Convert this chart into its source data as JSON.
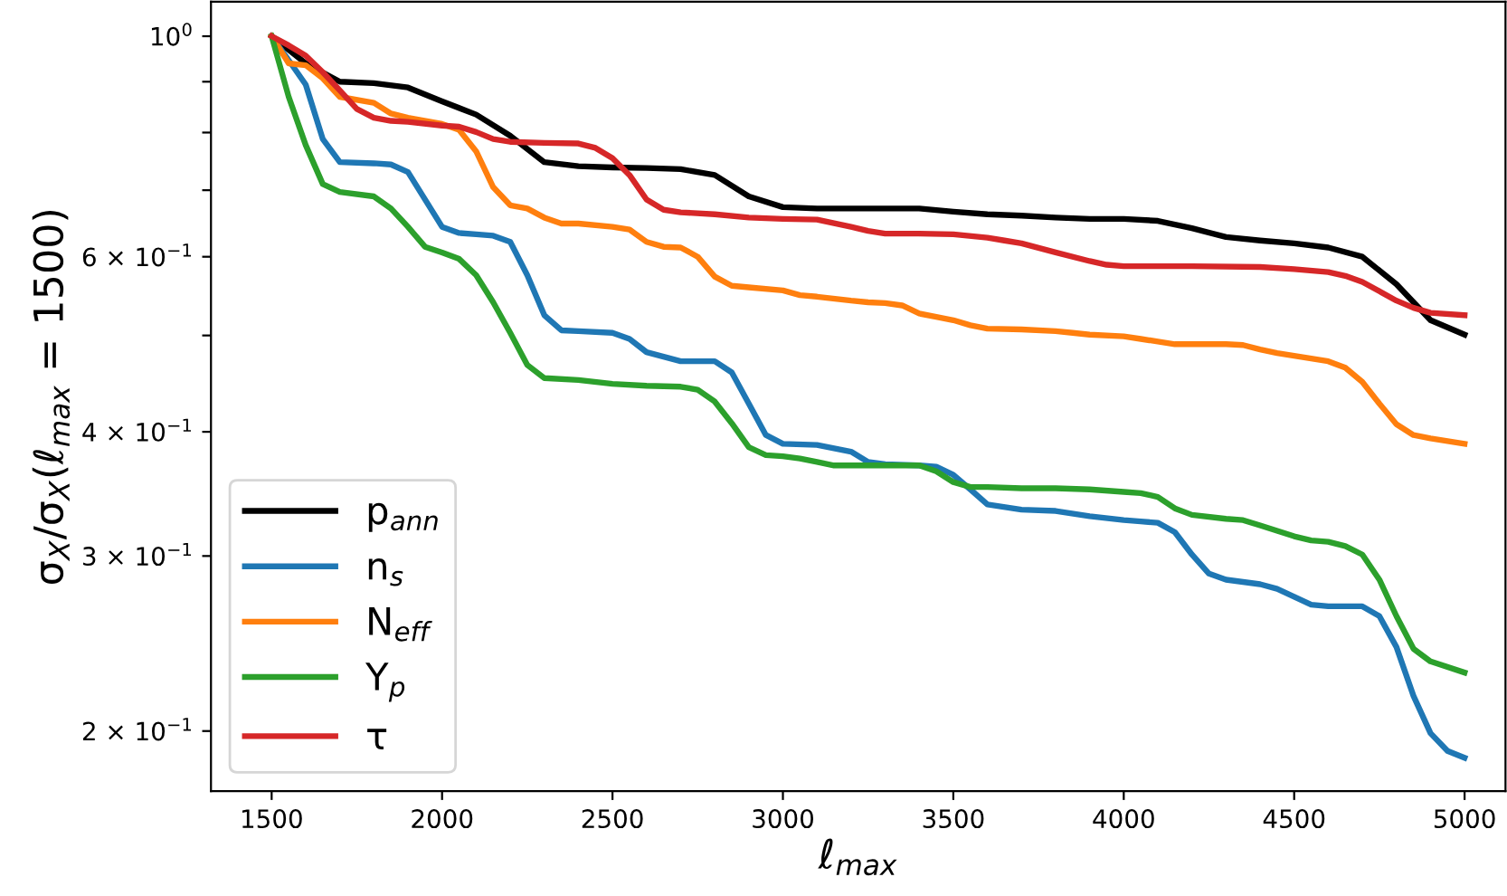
{
  "chart_data": {
    "type": "line",
    "xlabel": "ℓ$_{max}$",
    "ylabel": "σ$_{X}$/σ$_{X}$(ℓ$_{max}$ = 1500)",
    "log": "y",
    "grid": false,
    "legend": "bottom left",
    "line_style": "solid",
    "marker": "none",
    "xlim": [
      1322,
      5120
    ],
    "xticks": [
      1500,
      2000,
      2500,
      3000,
      3500,
      4000,
      4500,
      5000
    ],
    "ylim": [
      0.174,
      1.083
    ],
    "yticks": [
      {
        "value": 1,
        "label": "10$^{0}$"
      },
      {
        "value": 0.9,
        "label": null
      },
      {
        "value": 0.8,
        "label": null
      },
      {
        "value": 0.7,
        "label": null
      },
      {
        "value": 0.6,
        "label": "6 × 10$^{−1}$"
      },
      {
        "value": 0.5,
        "label": null
      },
      {
        "value": 0.4,
        "label": "4 × 10$^{−1}$"
      },
      {
        "value": 0.3,
        "label": "3 × 10$^{−1}$"
      },
      {
        "value": 0.2,
        "label": "2 × 10$^{−1}$"
      }
    ],
    "series": [
      {
        "name": "p$_{ann}$",
        "color": "#000000",
        "x": [
          1500,
          1600,
          1700,
          1800,
          1900,
          2000,
          2100,
          2200,
          2300,
          2400,
          2500,
          2600,
          2700,
          2800,
          2900,
          3000,
          3100,
          3200,
          3300,
          3400,
          3500,
          3600,
          3700,
          3800,
          3900,
          4000,
          4100,
          4200,
          4300,
          4400,
          4500,
          4600,
          4700,
          4800,
          4900,
          5000
        ],
        "values": [
          1.0,
          0.939,
          0.9,
          0.897,
          0.888,
          0.86,
          0.834,
          0.794,
          0.747,
          0.74,
          0.738,
          0.737,
          0.735,
          0.725,
          0.69,
          0.673,
          0.671,
          0.671,
          0.671,
          0.671,
          0.666,
          0.662,
          0.66,
          0.657,
          0.655,
          0.655,
          0.652,
          0.641,
          0.628,
          0.623,
          0.619,
          0.613,
          0.6,
          0.563,
          0.518,
          0.501
        ]
      },
      {
        "name": "n$_{s}$",
        "color": "#1f77b4",
        "x": [
          1500,
          1550,
          1600,
          1650,
          1700,
          1800,
          1850,
          1900,
          2000,
          2050,
          2100,
          2150,
          2200,
          2250,
          2300,
          2350,
          2400,
          2500,
          2550,
          2600,
          2700,
          2800,
          2850,
          2900,
          2950,
          3000,
          3100,
          3200,
          3250,
          3300,
          3400,
          3450,
          3500,
          3550,
          3600,
          3700,
          3800,
          3900,
          4000,
          4050,
          4100,
          4150,
          4200,
          4250,
          4300,
          4400,
          4450,
          4500,
          4550,
          4600,
          4700,
          4750,
          4800,
          4850,
          4900,
          4950,
          5000
        ],
        "values": [
          1.0,
          0.946,
          0.894,
          0.788,
          0.747,
          0.745,
          0.743,
          0.73,
          0.643,
          0.634,
          0.632,
          0.63,
          0.621,
          0.575,
          0.524,
          0.506,
          0.505,
          0.503,
          0.496,
          0.481,
          0.471,
          0.471,
          0.459,
          0.427,
          0.397,
          0.389,
          0.388,
          0.382,
          0.373,
          0.371,
          0.37,
          0.369,
          0.362,
          0.35,
          0.338,
          0.334,
          0.333,
          0.329,
          0.326,
          0.325,
          0.324,
          0.317,
          0.301,
          0.288,
          0.284,
          0.281,
          0.278,
          0.273,
          0.268,
          0.267,
          0.267,
          0.261,
          0.243,
          0.217,
          0.199,
          0.191,
          0.188
        ]
      },
      {
        "name": "N$_{eff}$",
        "color": "#ff7f0e",
        "x": [
          1500,
          1550,
          1600,
          1650,
          1700,
          1800,
          1850,
          1900,
          2000,
          2050,
          2100,
          2150,
          2200,
          2250,
          2300,
          2350,
          2400,
          2500,
          2550,
          2600,
          2650,
          2700,
          2750,
          2800,
          2850,
          2900,
          3000,
          3050,
          3100,
          3200,
          3250,
          3300,
          3350,
          3400,
          3450,
          3500,
          3550,
          3600,
          3700,
          3800,
          3850,
          3900,
          4000,
          4050,
          4100,
          4150,
          4200,
          4300,
          4350,
          4400,
          4450,
          4500,
          4550,
          4600,
          4650,
          4700,
          4750,
          4800,
          4850,
          4900,
          5000
        ],
        "values": [
          1.0,
          0.939,
          0.935,
          0.907,
          0.869,
          0.857,
          0.836,
          0.828,
          0.816,
          0.805,
          0.766,
          0.705,
          0.676,
          0.671,
          0.657,
          0.648,
          0.648,
          0.643,
          0.639,
          0.621,
          0.614,
          0.613,
          0.6,
          0.573,
          0.561,
          0.559,
          0.555,
          0.549,
          0.547,
          0.542,
          0.54,
          0.539,
          0.536,
          0.526,
          0.522,
          0.518,
          0.512,
          0.508,
          0.507,
          0.505,
          0.503,
          0.501,
          0.499,
          0.496,
          0.493,
          0.49,
          0.49,
          0.49,
          0.489,
          0.484,
          0.48,
          0.477,
          0.474,
          0.471,
          0.464,
          0.449,
          0.427,
          0.407,
          0.397,
          0.394,
          0.389
        ]
      },
      {
        "name": "Y$_{p}$",
        "color": "#2ca02c",
        "x": [
          1500,
          1550,
          1600,
          1650,
          1700,
          1800,
          1850,
          1900,
          1950,
          2000,
          2050,
          2100,
          2150,
          2200,
          2250,
          2300,
          2400,
          2500,
          2600,
          2700,
          2750,
          2800,
          2850,
          2900,
          2950,
          3000,
          3050,
          3100,
          3150,
          3200,
          3300,
          3400,
          3450,
          3500,
          3550,
          3600,
          3700,
          3800,
          3900,
          4000,
          4050,
          4100,
          4150,
          4200,
          4300,
          4350,
          4400,
          4450,
          4500,
          4550,
          4600,
          4650,
          4700,
          4750,
          4800,
          4850,
          4900,
          5000
        ],
        "values": [
          1.0,
          0.869,
          0.777,
          0.71,
          0.697,
          0.69,
          0.671,
          0.643,
          0.614,
          0.606,
          0.597,
          0.575,
          0.54,
          0.503,
          0.467,
          0.453,
          0.451,
          0.447,
          0.445,
          0.444,
          0.441,
          0.429,
          0.408,
          0.386,
          0.379,
          0.378,
          0.376,
          0.373,
          0.37,
          0.37,
          0.37,
          0.37,
          0.365,
          0.356,
          0.352,
          0.352,
          0.351,
          0.351,
          0.35,
          0.348,
          0.347,
          0.344,
          0.335,
          0.33,
          0.327,
          0.326,
          0.322,
          0.318,
          0.314,
          0.311,
          0.31,
          0.307,
          0.301,
          0.284,
          0.261,
          0.242,
          0.235,
          0.229
        ]
      },
      {
        "name": "τ",
        "color": "#d62728",
        "x": [
          1500,
          1550,
          1600,
          1650,
          1700,
          1750,
          1800,
          1850,
          1900,
          2000,
          2050,
          2100,
          2150,
          2200,
          2300,
          2400,
          2450,
          2500,
          2550,
          2600,
          2650,
          2700,
          2800,
          2900,
          3000,
          3100,
          3200,
          3250,
          3300,
          3400,
          3500,
          3600,
          3650,
          3700,
          3800,
          3900,
          3950,
          4000,
          4200,
          4400,
          4500,
          4600,
          4650,
          4700,
          4750,
          4800,
          4850,
          4900,
          5000
        ],
        "values": [
          1.0,
          0.979,
          0.956,
          0.92,
          0.882,
          0.845,
          0.828,
          0.822,
          0.82,
          0.813,
          0.811,
          0.801,
          0.788,
          0.783,
          0.781,
          0.78,
          0.772,
          0.754,
          0.725,
          0.685,
          0.669,
          0.665,
          0.662,
          0.657,
          0.655,
          0.654,
          0.643,
          0.637,
          0.633,
          0.633,
          0.632,
          0.627,
          0.623,
          0.619,
          0.606,
          0.594,
          0.589,
          0.587,
          0.587,
          0.586,
          0.583,
          0.579,
          0.574,
          0.566,
          0.554,
          0.542,
          0.533,
          0.527,
          0.524
        ]
      }
    ]
  }
}
